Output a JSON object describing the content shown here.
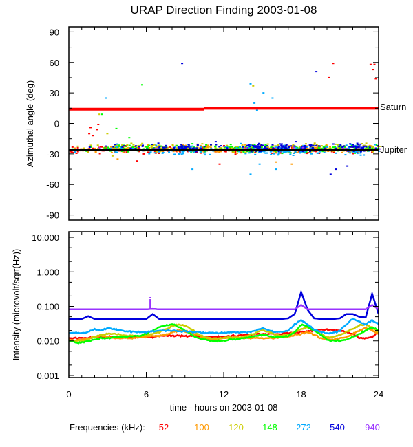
{
  "chart_data": [
    {
      "type": "scatter",
      "title": "URAP Direction Finding  2003-01-08",
      "xlabel": "",
      "ylabel": "Azimuthal angle (deg)",
      "xlim": [
        0,
        24
      ],
      "ylim": [
        -95,
        95
      ],
      "yticks": [
        90,
        60,
        30,
        0,
        -30,
        -60,
        -90
      ],
      "ytick_labels": [
        "90",
        "60",
        "30",
        "0",
        "-30",
        "-60",
        "-90"
      ],
      "reference_lines": [
        {
          "name": "Saturn",
          "label": "Saturn",
          "color": "#ff0000",
          "segments": [
            {
              "x": [
                0,
                10.5
              ],
              "y": 14.0
            },
            {
              "x": [
                10.5,
                24
              ],
              "y": 15.0
            }
          ]
        },
        {
          "name": "Jupiter",
          "label": "Jupiter",
          "color": "#000000",
          "segments": [
            {
              "x": [
                0,
                24
              ],
              "y": -26.0
            }
          ]
        }
      ],
      "series": [
        {
          "name": "52",
          "color": "#ff0000",
          "cluster_center": -26,
          "cluster_spread": 5,
          "outliers": [
            [
              1.6,
              -4
            ],
            [
              1.8,
              -12
            ],
            [
              2.1,
              -6
            ],
            [
              2.2,
              -1
            ],
            [
              1.5,
              -10
            ],
            [
              5.2,
              -37
            ],
            [
              11.6,
              -40
            ],
            [
              20.4,
              59
            ],
            [
              20.1,
              45
            ],
            [
              23.3,
              58
            ],
            [
              23.6,
              58
            ],
            [
              23.7,
              44
            ],
            [
              23.5,
              53
            ],
            [
              4.3,
              -22
            ],
            [
              14.8,
              -22
            ]
          ]
        },
        {
          "name": "100",
          "color": "#ff9900",
          "cluster_center": -25,
          "cluster_spread": 5,
          "outliers": [
            [
              2.0,
              -28
            ],
            [
              3.7,
              -35
            ],
            [
              17.2,
              -40
            ],
            [
              16.0,
              -38
            ]
          ]
        },
        {
          "name": "120",
          "color": "#cccc00",
          "cluster_center": -24,
          "cluster_spread": 6,
          "outliers": [
            [
              2.3,
              9
            ],
            [
              2.9,
              -10
            ],
            [
              14.2,
              37
            ],
            [
              3.3,
              -32
            ]
          ]
        },
        {
          "name": "148",
          "color": "#00ff00",
          "cluster_center": -25,
          "cluster_spread": 5,
          "outliers": [
            [
              5.6,
              38
            ],
            [
              2.5,
              9
            ],
            [
              3.6,
              -5
            ],
            [
              4.6,
              -14
            ],
            [
              9.5,
              -20
            ],
            [
              15.3,
              -22
            ],
            [
              17.1,
              -29
            ],
            [
              22.5,
              -25
            ]
          ]
        },
        {
          "name": "272",
          "color": "#00aaff",
          "cluster_center": -26,
          "cluster_spread": 7,
          "outliers": [
            [
              2.8,
              25
            ],
            [
              14.0,
              39
            ],
            [
              14.3,
              20
            ],
            [
              15.0,
              30
            ],
            [
              15.7,
              25
            ],
            [
              14.5,
              13
            ],
            [
              14.7,
              -40
            ],
            [
              16.0,
              -45
            ],
            [
              14.0,
              -50
            ],
            [
              9.5,
              -45
            ],
            [
              2.9,
              14
            ]
          ]
        },
        {
          "name": "540",
          "color": "#0000dd",
          "cluster_center": -24,
          "cluster_spread": 6,
          "outliers": [
            [
              8.7,
              59
            ],
            [
              19.1,
              51
            ],
            [
              20.2,
              -50
            ],
            [
              20.6,
              -45
            ],
            [
              21.5,
              -42
            ],
            [
              17.5,
              -18
            ],
            [
              11.3,
              -18
            ]
          ]
        },
        {
          "name": "940",
          "color": "#9933ff",
          "cluster_center": -25,
          "cluster_spread": 3,
          "outliers": []
        }
      ]
    },
    {
      "type": "line",
      "xlabel": "time - hours on 2003-01-08",
      "ylabel": "Intensity (microvolt/sqrt(Hz))",
      "xlim": [
        0,
        24
      ],
      "ylim_log10": [
        -3.06,
        1.16
      ],
      "yscale": "log",
      "xticks": [
        0,
        6,
        12,
        18,
        24
      ],
      "xtick_labels": [
        "0",
        "6",
        "12",
        "18",
        "24"
      ],
      "yticks": [
        10,
        1,
        0.1,
        0.01,
        0.001
      ],
      "ytick_labels": [
        "10.000",
        "1.000",
        "0.100",
        "0.010",
        "0.001"
      ],
      "x": [
        0,
        0.5,
        1,
        1.5,
        2,
        2.5,
        3,
        3.5,
        4,
        4.5,
        5,
        5.5,
        6,
        6.5,
        7,
        7.5,
        8,
        8.5,
        9,
        9.5,
        10,
        10.5,
        11,
        11.5,
        12,
        12.5,
        13,
        13.5,
        14,
        14.5,
        15,
        15.5,
        16,
        16.5,
        17,
        17.5,
        18,
        18.5,
        19,
        19.5,
        20,
        20.5,
        21,
        21.5,
        22,
        22.5,
        23,
        23.5,
        24
      ],
      "series": [
        {
          "name": "52",
          "color": "#ff0000",
          "values": [
            0.012,
            0.012,
            0.012,
            0.012,
            0.013,
            0.013,
            0.013,
            0.013,
            0.013,
            0.013,
            0.013,
            0.013,
            0.013,
            0.013,
            0.014,
            0.014,
            0.014,
            0.014,
            0.014,
            0.014,
            0.014,
            0.013,
            0.013,
            0.013,
            0.013,
            0.014,
            0.014,
            0.015,
            0.015,
            0.016,
            0.016,
            0.016,
            0.016,
            0.016,
            0.017,
            0.017,
            0.018,
            0.019,
            0.02,
            0.021,
            0.021,
            0.021,
            0.02,
            0.018,
            0.016,
            0.012,
            0.012,
            0.013,
            0.018
          ]
        },
        {
          "name": "100",
          "color": "#ff9900",
          "values": [
            0.011,
            0.01,
            0.011,
            0.012,
            0.013,
            0.014,
            0.013,
            0.012,
            0.012,
            0.012,
            0.012,
            0.013,
            0.013,
            0.014,
            0.014,
            0.015,
            0.018,
            0.02,
            0.019,
            0.017,
            0.015,
            0.012,
            0.011,
            0.011,
            0.012,
            0.012,
            0.013,
            0.012,
            0.012,
            0.012,
            0.012,
            0.012,
            0.012,
            0.013,
            0.013,
            0.015,
            0.016,
            0.018,
            0.015,
            0.012,
            0.011,
            0.011,
            0.012,
            0.013,
            0.016,
            0.02,
            0.024,
            0.02,
            0.016
          ]
        },
        {
          "name": "120",
          "color": "#cccc00",
          "values": [
            0.01,
            0.01,
            0.01,
            0.011,
            0.013,
            0.015,
            0.016,
            0.016,
            0.015,
            0.014,
            0.014,
            0.014,
            0.015,
            0.016,
            0.018,
            0.022,
            0.027,
            0.03,
            0.028,
            0.022,
            0.016,
            0.013,
            0.012,
            0.012,
            0.012,
            0.013,
            0.012,
            0.013,
            0.015,
            0.017,
            0.021,
            0.018,
            0.015,
            0.014,
            0.015,
            0.018,
            0.022,
            0.025,
            0.02,
            0.016,
            0.013,
            0.013,
            0.015,
            0.018,
            0.022,
            0.028,
            0.03,
            0.024,
            0.018
          ]
        },
        {
          "name": "148",
          "color": "#00ff00",
          "values": [
            0.01,
            0.009,
            0.009,
            0.01,
            0.011,
            0.012,
            0.012,
            0.013,
            0.013,
            0.013,
            0.014,
            0.014,
            0.016,
            0.02,
            0.025,
            0.028,
            0.03,
            0.026,
            0.02,
            0.015,
            0.012,
            0.011,
            0.01,
            0.01,
            0.01,
            0.011,
            0.011,
            0.012,
            0.013,
            0.014,
            0.015,
            0.014,
            0.013,
            0.013,
            0.014,
            0.018,
            0.03,
            0.026,
            0.02,
            0.015,
            0.011,
            0.01,
            0.01,
            0.011,
            0.013,
            0.016,
            0.02,
            0.025,
            0.02
          ]
        },
        {
          "name": "272",
          "color": "#00aaff",
          "values": [
            0.017,
            0.017,
            0.017,
            0.018,
            0.022,
            0.02,
            0.024,
            0.022,
            0.02,
            0.019,
            0.018,
            0.018,
            0.018,
            0.019,
            0.02,
            0.02,
            0.02,
            0.019,
            0.019,
            0.018,
            0.018,
            0.017,
            0.017,
            0.017,
            0.017,
            0.018,
            0.018,
            0.018,
            0.018,
            0.02,
            0.024,
            0.02,
            0.018,
            0.018,
            0.02,
            0.03,
            0.04,
            0.03,
            0.022,
            0.018,
            0.017,
            0.017,
            0.02,
            0.03,
            0.045,
            0.035,
            0.03,
            0.04,
            0.03
          ]
        },
        {
          "name": "540",
          "color": "#0000dd",
          "values": [
            0.043,
            0.043,
            0.043,
            0.052,
            0.043,
            0.043,
            0.043,
            0.043,
            0.043,
            0.043,
            0.043,
            0.043,
            0.043,
            0.06,
            0.043,
            0.043,
            0.043,
            0.043,
            0.043,
            0.043,
            0.043,
            0.043,
            0.043,
            0.043,
            0.043,
            0.043,
            0.043,
            0.043,
            0.043,
            0.043,
            0.043,
            0.043,
            0.043,
            0.043,
            0.045,
            0.06,
            0.26,
            0.08,
            0.045,
            0.043,
            0.043,
            0.043,
            0.045,
            0.06,
            0.06,
            0.05,
            0.048,
            0.23,
            0.06
          ]
        },
        {
          "name": "940",
          "color": "#9933ff",
          "values": [
            0.082,
            0.082,
            0.082,
            0.082,
            0.082,
            0.082,
            0.082,
            0.082,
            0.082,
            0.082,
            0.082,
            0.082,
            0.082,
            0.085,
            0.082,
            0.082,
            0.082,
            0.082,
            0.082,
            0.082,
            0.082,
            0.082,
            0.082,
            0.082,
            0.082,
            0.082,
            0.082,
            0.082,
            0.082,
            0.082,
            0.082,
            0.082,
            0.082,
            0.082,
            0.082,
            0.082,
            0.11,
            0.082,
            0.082,
            0.082,
            0.082,
            0.082,
            0.082,
            0.082,
            0.082,
            0.082,
            0.082,
            0.11,
            0.082
          ]
        }
      ],
      "spikes": [
        {
          "series": "940",
          "x": 6.3,
          "peak": 0.19
        },
        {
          "series": "540",
          "x": 18.0,
          "peak": 0.26
        },
        {
          "series": "540",
          "x": 23.4,
          "peak": 0.23
        }
      ]
    }
  ],
  "legend": {
    "label": "Frequencies (kHz):",
    "placement": "bottom",
    "entries": [
      {
        "text": "52",
        "color": "#ff0000"
      },
      {
        "text": "100",
        "color": "#ff9900"
      },
      {
        "text": "120",
        "color": "#cccc00"
      },
      {
        "text": "148",
        "color": "#00ff00"
      },
      {
        "text": "272",
        "color": "#00aaff"
      },
      {
        "text": "540",
        "color": "#0000dd"
      },
      {
        "text": "940",
        "color": "#9933ff"
      }
    ]
  }
}
